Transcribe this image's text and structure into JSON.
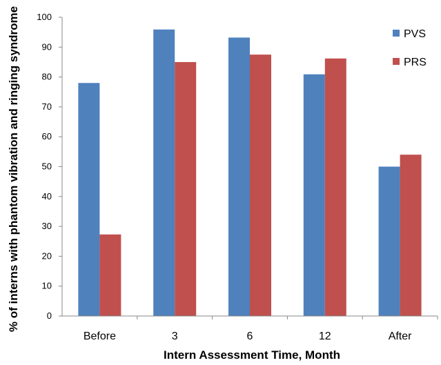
{
  "chart_data": {
    "type": "bar",
    "title": "",
    "xlabel": "Intern Assessment Time, Month",
    "ylabel": "% of interns with phantom vibration and ringing syndrome",
    "categories": [
      "Before",
      "3",
      "6",
      "12",
      "After"
    ],
    "series": [
      {
        "name": "PVS",
        "color": "#4F81BD",
        "values": [
          78,
          95.9,
          93.2,
          80.9,
          50
        ]
      },
      {
        "name": "PRS",
        "color": "#C0504D",
        "values": [
          27.3,
          85,
          87.5,
          86.2,
          54
        ]
      }
    ],
    "ylim": [
      0,
      100
    ],
    "yticks": [
      "0",
      "10",
      "20",
      "30",
      "40",
      "50",
      "60",
      "70",
      "80",
      "90",
      "100"
    ],
    "grid": false,
    "legend_position": "top-right"
  }
}
